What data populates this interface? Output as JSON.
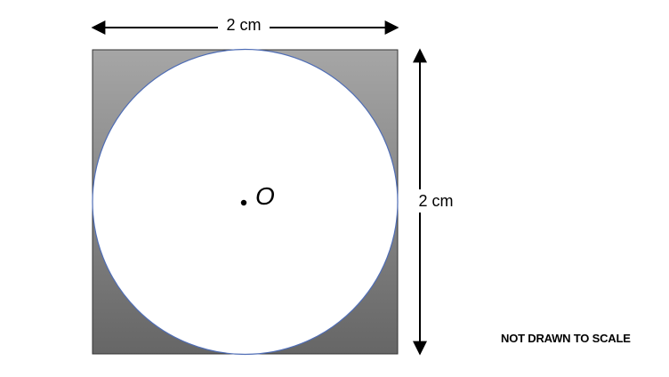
{
  "diagram": {
    "labels": {
      "width": "2 cm",
      "height": "2 cm",
      "center": "O",
      "note": "NOT DRAWN TO SCALE"
    },
    "colors": {
      "square_gradient_top": "#a6a6a6",
      "square_gradient_bottom": "#666666",
      "circle_fill": "#ffffff",
      "circle_outline": "#4f6db5",
      "arrow": "#000000"
    }
  }
}
